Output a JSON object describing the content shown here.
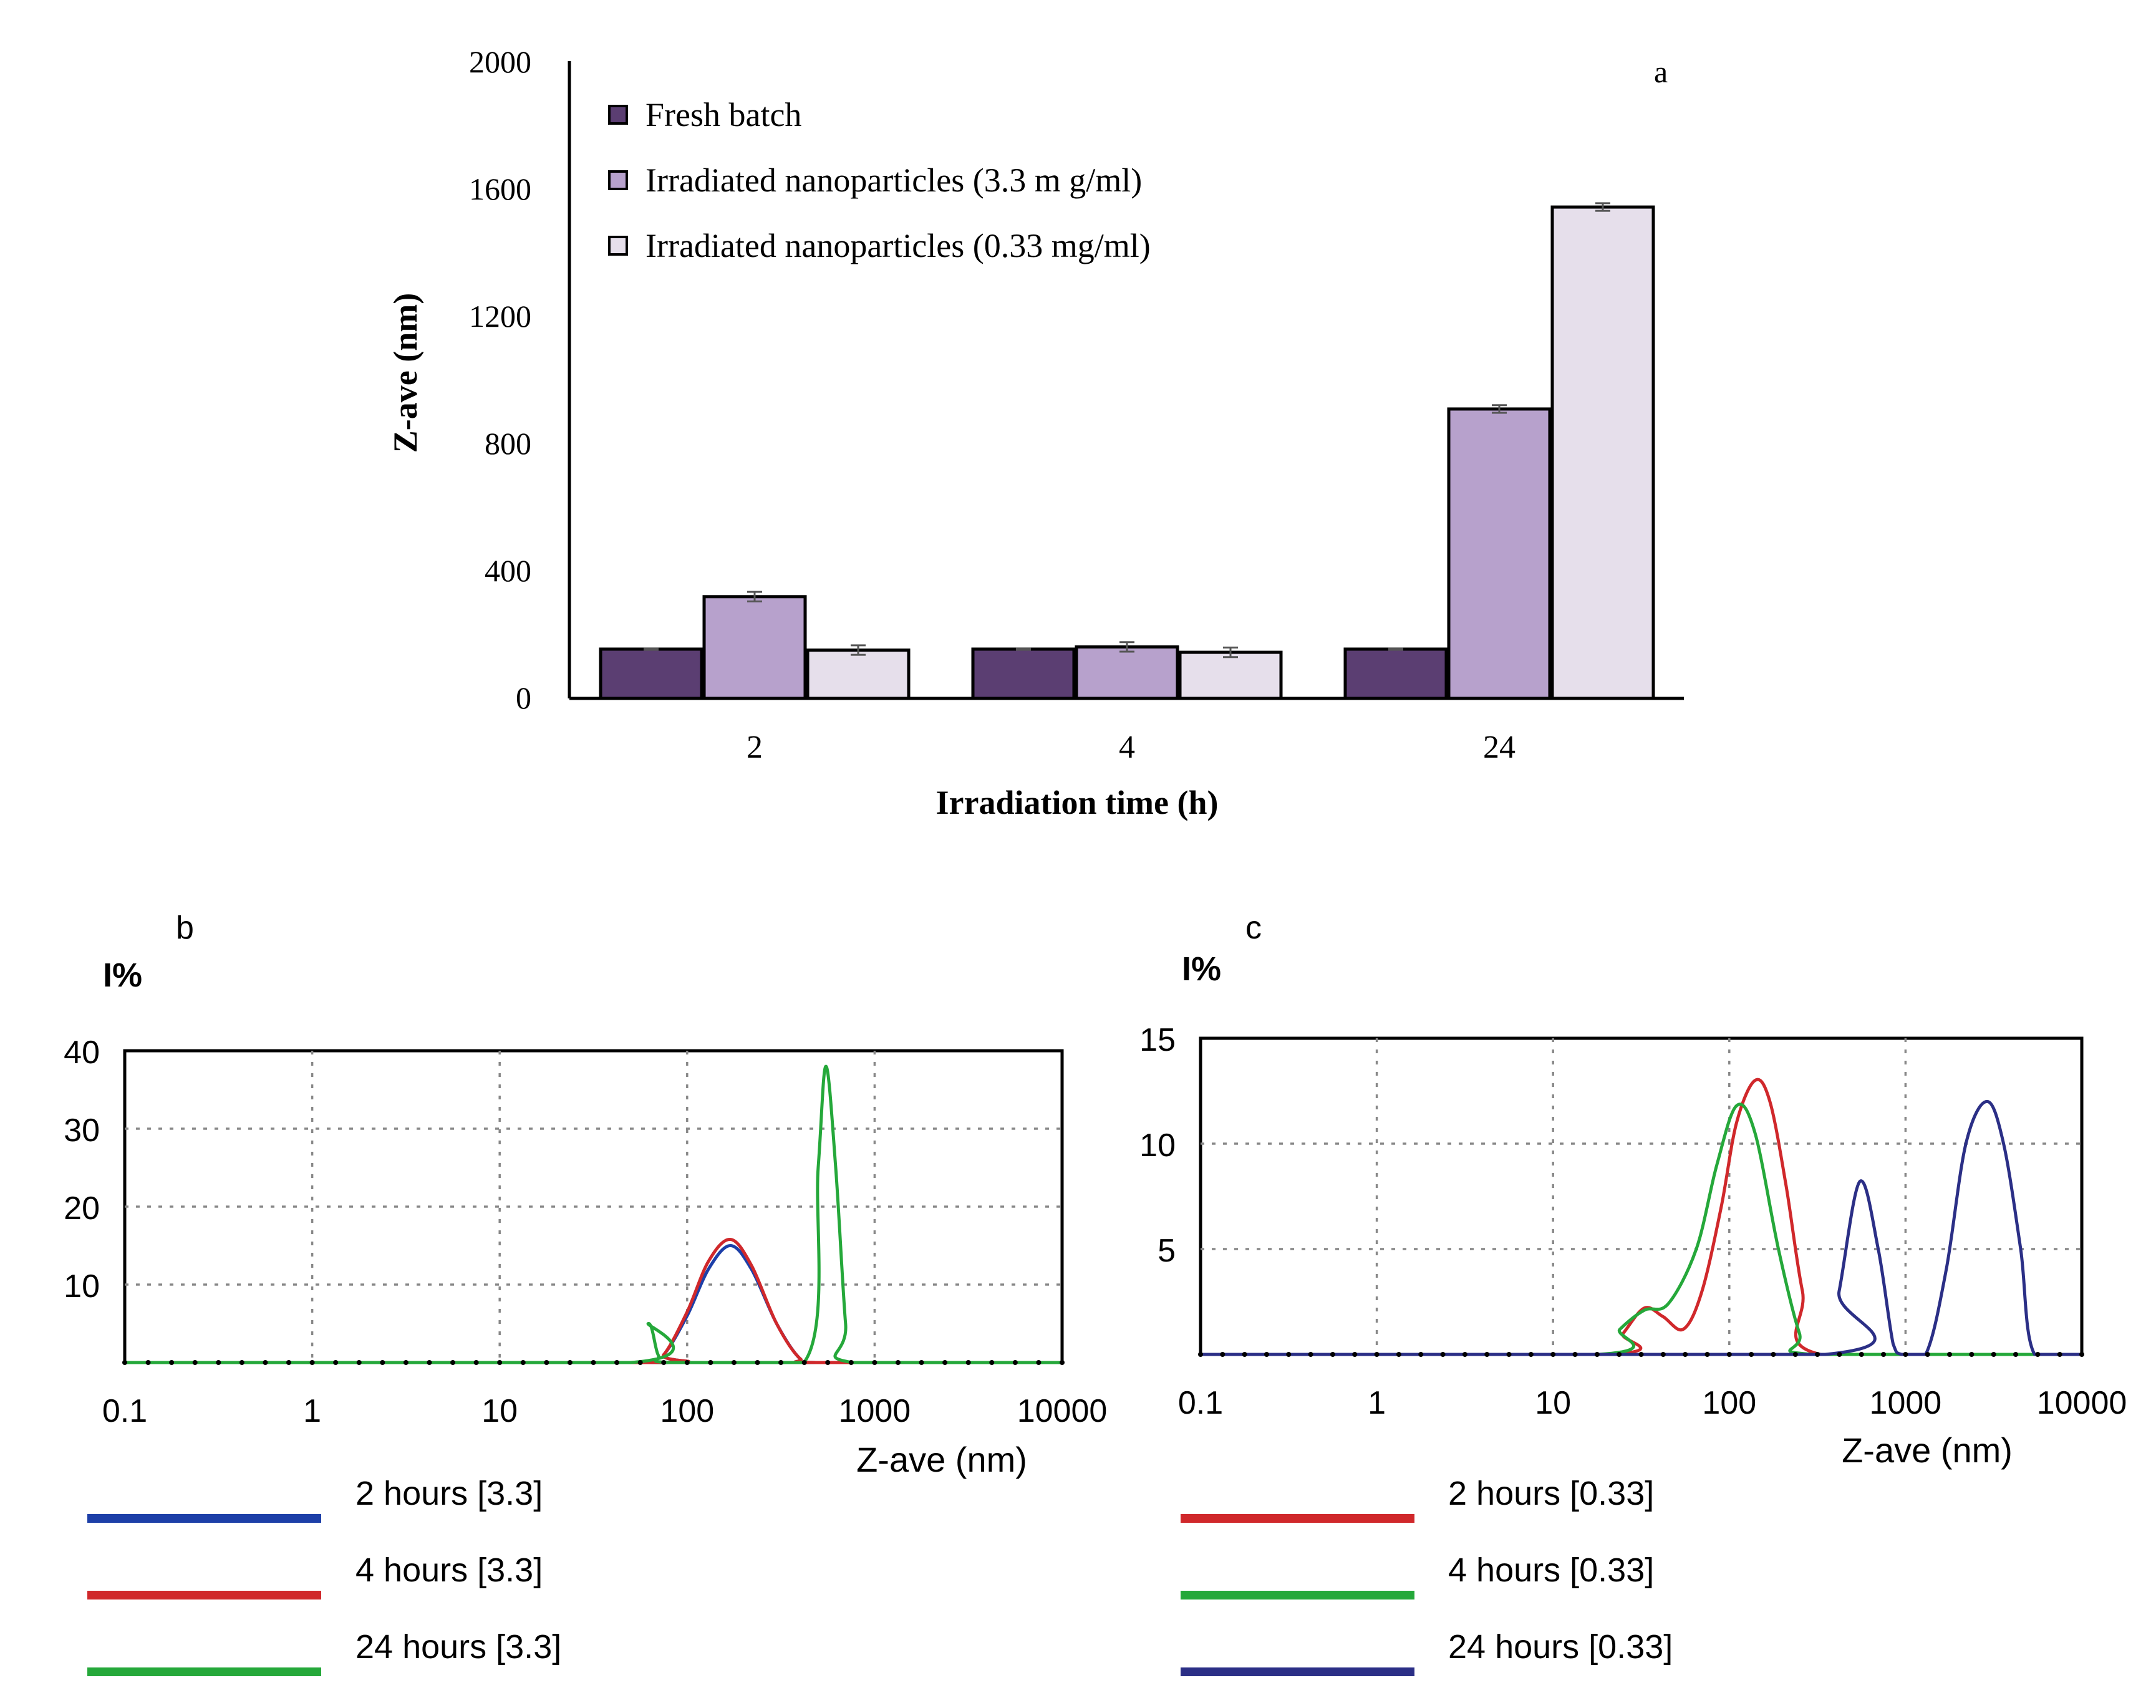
{
  "chart_data": [
    {
      "panel": "a",
      "type": "bar",
      "label": "a",
      "ylabel": "Z-ave  (nm)",
      "xlabel": "Irradiation  time (h)",
      "ylim": [
        0,
        2000
      ],
      "yticks": [
        "0",
        "400",
        "800",
        "1200",
        "1600",
        "2000"
      ],
      "ytick_values": [
        0,
        400,
        800,
        1200,
        1600,
        2000
      ],
      "categories": [
        "2",
        "4",
        "24"
      ],
      "series": [
        {
          "name": "Fresh batch",
          "color": "#5b3e72",
          "values": [
            155,
            155,
            155
          ],
          "errors": [
            2,
            2,
            2
          ]
        },
        {
          "name": "Irradiated nanoparticles (3.3 m g/ml)",
          "color": "#b7a1cc",
          "values": [
            320,
            162,
            910
          ],
          "errors": [
            15,
            15,
            12
          ]
        },
        {
          "name": "Irradiated nanoparticles (0.33 mg/ml)",
          "color": "#e6dfeb",
          "values": [
            152,
            145,
            1545
          ],
          "errors": [
            15,
            15,
            12
          ]
        }
      ]
    },
    {
      "panel": "b",
      "type": "line",
      "label": "b",
      "ylabel": "I%",
      "xlabel": "Z-ave (nm)",
      "xscale": "log",
      "xlim": [
        0.1,
        10000
      ],
      "ylim": [
        0,
        40
      ],
      "xticks": [
        "0.1",
        "1",
        "10",
        "100",
        "1000",
        "10000"
      ],
      "xtick_values": [
        0.1,
        1,
        10,
        100,
        1000,
        10000
      ],
      "yticks": [
        "10",
        "20",
        "30",
        "40"
      ],
      "ytick_values": [
        10,
        20,
        30,
        40
      ],
      "series": [
        {
          "name": "2 hours [3.3]",
          "color": "#1d3fa8",
          "points": [
            [
              0.1,
              0
            ],
            [
              60,
              0
            ],
            [
              75,
              1
            ],
            [
              100,
              6
            ],
            [
              130,
              12
            ],
            [
              170,
              15
            ],
            [
              220,
              12
            ],
            [
              300,
              5
            ],
            [
              400,
              0.5
            ],
            [
              500,
              0
            ],
            [
              10000,
              0
            ]
          ]
        },
        {
          "name": "4 hours [3.3]",
          "color": "#d0282b",
          "points": [
            [
              0.1,
              0
            ],
            [
              60,
              0
            ],
            [
              75,
              1
            ],
            [
              100,
              6.5
            ],
            [
              130,
              13
            ],
            [
              170,
              15.8
            ],
            [
              220,
              12.5
            ],
            [
              300,
              5
            ],
            [
              400,
              0.5
            ],
            [
              500,
              0
            ],
            [
              10000,
              0
            ]
          ]
        },
        {
          "name": "24 hours [3.3]",
          "color": "#25a83a",
          "points": [
            [
              0.1,
              0
            ],
            [
              50,
              0
            ],
            [
              62,
              5
            ],
            [
              70,
              1
            ],
            [
              80,
              0
            ],
            [
              420,
              0
            ],
            [
              500,
              25
            ],
            [
              550,
              38
            ],
            [
              620,
              25
            ],
            [
              700,
              5
            ],
            [
              760,
              0
            ],
            [
              10000,
              0
            ]
          ]
        }
      ]
    },
    {
      "panel": "c",
      "type": "line",
      "label": "c",
      "ylabel": "I%",
      "xlabel": "Z-ave (nm)",
      "xscale": "log",
      "xlim": [
        0.1,
        10000
      ],
      "ylim": [
        0,
        15
      ],
      "xticks": [
        "0.1",
        "1",
        "10",
        "100",
        "1000",
        "10000"
      ],
      "xtick_values": [
        0.1,
        1,
        10,
        100,
        1000,
        10000
      ],
      "yticks": [
        "5",
        "10",
        "15"
      ],
      "ytick_values": [
        5,
        10,
        15
      ],
      "series": [
        {
          "name": "2 hours [0.33]",
          "color": "#d0282b",
          "points": [
            [
              0.1,
              0
            ],
            [
              20,
              0
            ],
            [
              25,
              1
            ],
            [
              33,
              2.2
            ],
            [
              42,
              1.8
            ],
            [
              55,
              1.2
            ],
            [
              70,
              3
            ],
            [
              90,
              7
            ],
            [
              110,
              11
            ],
            [
              140,
              13
            ],
            [
              170,
              12
            ],
            [
              210,
              8
            ],
            [
              260,
              3
            ],
            [
              330,
              0
            ],
            [
              10000,
              0
            ]
          ]
        },
        {
          "name": "4 hours [0.33]",
          "color": "#25a83a",
          "points": [
            [
              0.1,
              0
            ],
            [
              18,
              0
            ],
            [
              24,
              1.2
            ],
            [
              33,
              2.1
            ],
            [
              45,
              2.4
            ],
            [
              65,
              5
            ],
            [
              85,
              9
            ],
            [
              110,
              11.8
            ],
            [
              140,
              10.5
            ],
            [
              190,
              5
            ],
            [
              250,
              1
            ],
            [
              300,
              0
            ],
            [
              10000,
              0
            ]
          ]
        },
        {
          "name": "24 hours [0.33]",
          "color": "#2b2f86",
          "points": [
            [
              0.1,
              0
            ],
            [
              350,
              0
            ],
            [
              420,
              3
            ],
            [
              550,
              8.2
            ],
            [
              700,
              5
            ],
            [
              850,
              0.5
            ],
            [
              950,
              0
            ],
            [
              1300,
              0
            ],
            [
              1700,
              4
            ],
            [
              2200,
              10
            ],
            [
              2900,
              12
            ],
            [
              3600,
              10
            ],
            [
              4500,
              5
            ],
            [
              5400,
              0
            ],
            [
              10000,
              0
            ]
          ]
        }
      ]
    }
  ]
}
